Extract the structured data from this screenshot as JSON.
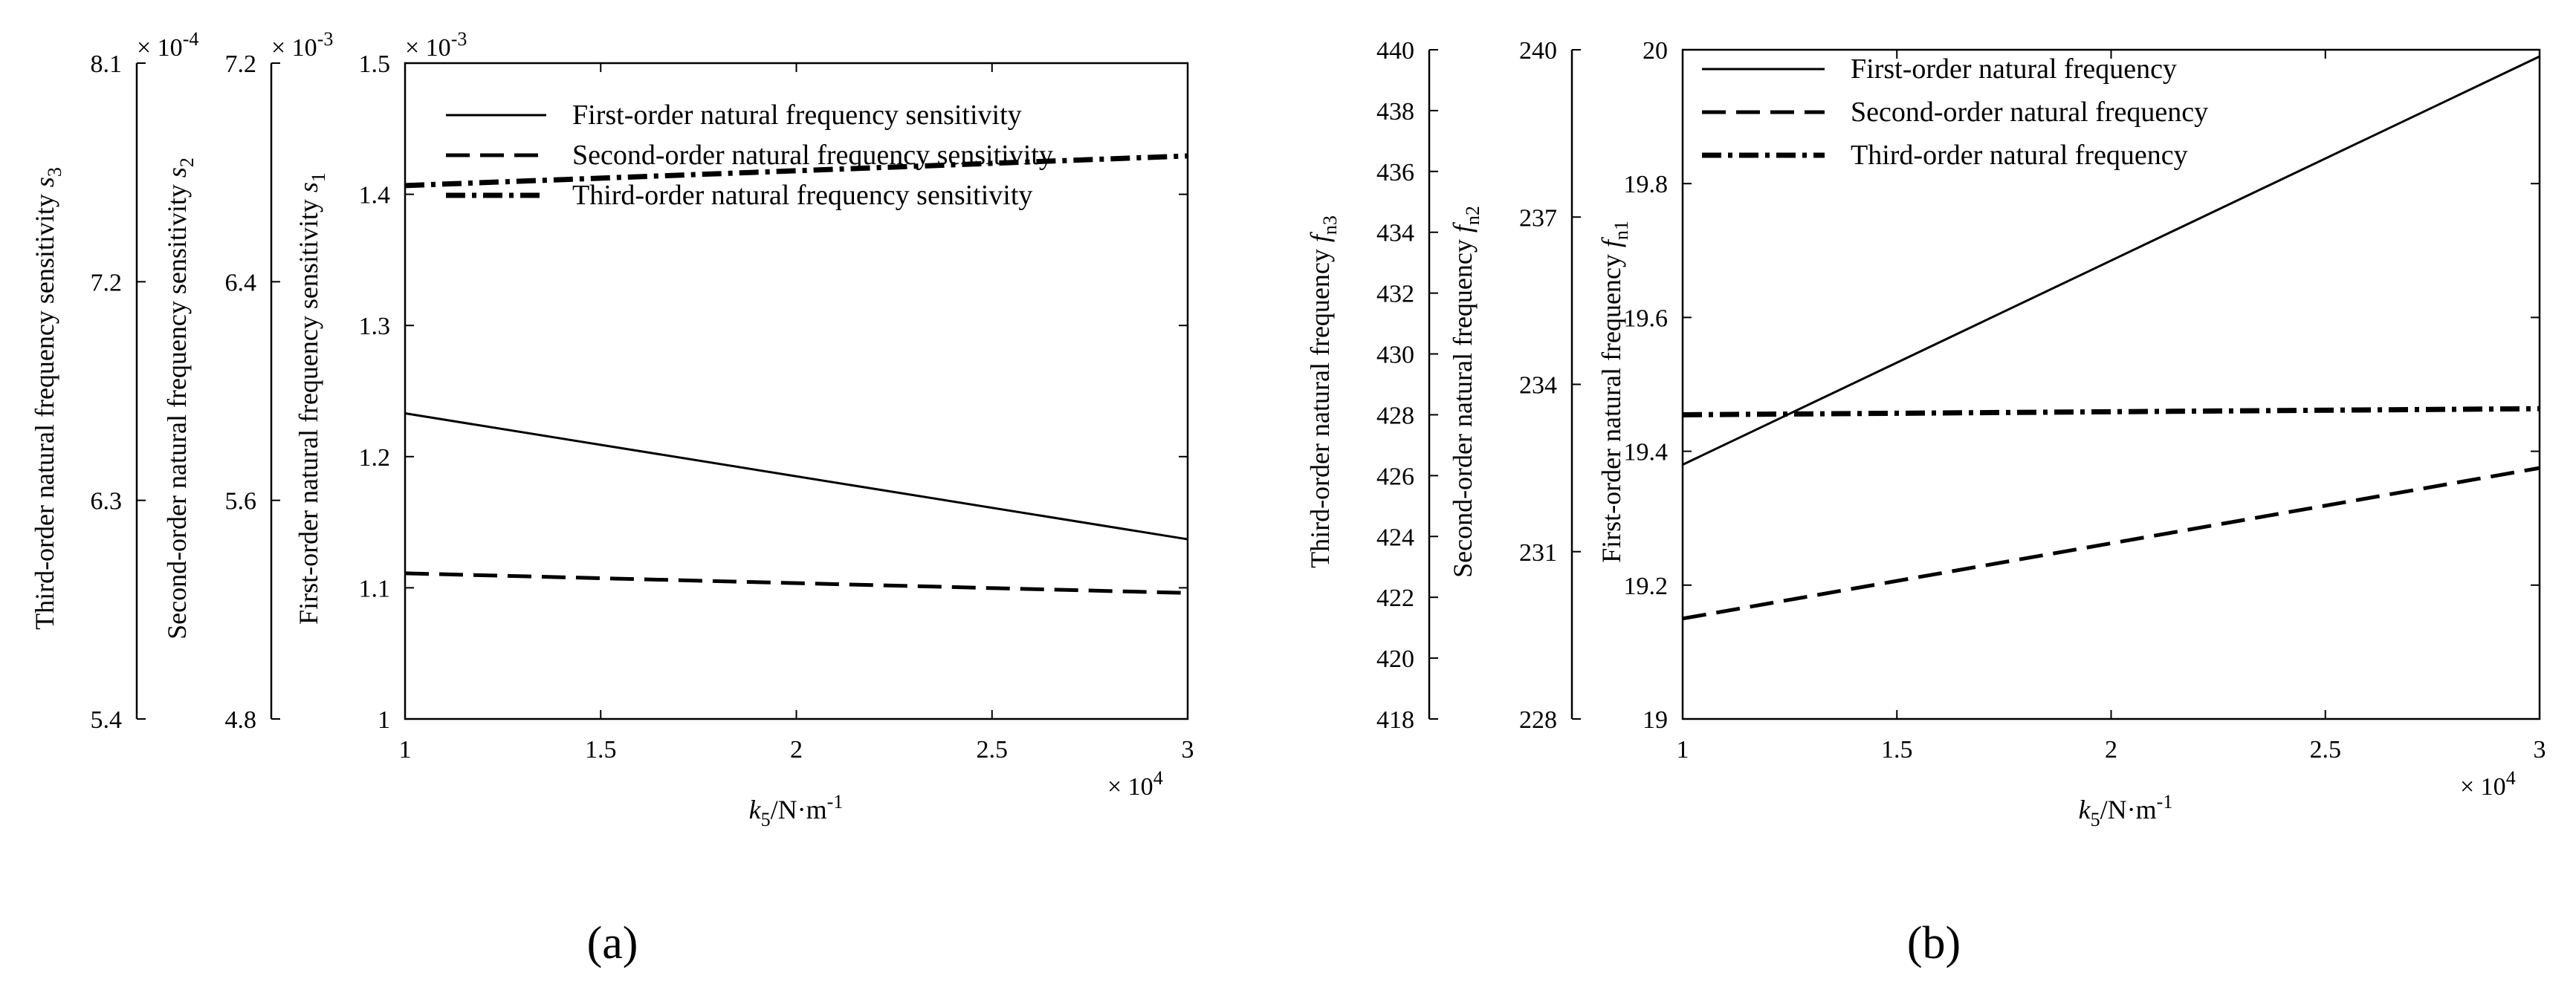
{
  "chart_data": [
    {
      "panel": "a",
      "panel_label": "(a)",
      "type": "line",
      "xlabel": "k5/N·m-1",
      "xlabel_main": "k",
      "xlabel_sub": "5",
      "xlabel_rest": "/N·m",
      "xlabel_sup": "-1",
      "x_exponent_mult": "× 10",
      "x_exponent": "4",
      "xlim": [
        1,
        3
      ],
      "xticks": [
        "1",
        "1.5",
        "2",
        "2.5",
        "3"
      ],
      "axes": [
        {
          "id": "s1",
          "label": "First-order natural frequency sensitivity s1",
          "label_main": "First-order natural frequency sensitivity ",
          "label_var": "s",
          "label_sub": "1",
          "ylim": [
            1.0,
            1.5
          ],
          "ticks": [
            "1",
            "1.1",
            "1.2",
            "1.3",
            "1.4",
            "1.5"
          ],
          "exponent_mult": "× 10",
          "exponent": "-3"
        },
        {
          "id": "s2",
          "label": "Second-order natural frequency sensitivity s2",
          "label_main": "Second-order natural frequency sensitivity ",
          "label_var": "s",
          "label_sub": "2",
          "ylim": [
            4.8,
            7.2
          ],
          "ticks": [
            "4.8",
            "5.6",
            "6.4",
            "7.2"
          ],
          "exponent_mult": "× 10",
          "exponent": "-3"
        },
        {
          "id": "s3",
          "label": "Third-order natural frequency sensitivity s3",
          "label_main": "Third-order natural frequency sensitivity ",
          "label_var": "s",
          "label_sub": "3",
          "ylim": [
            5.4,
            8.1
          ],
          "ticks": [
            "5.4",
            "6.3",
            "7.2",
            "8.1"
          ],
          "exponent_mult": "× 10",
          "exponent": "-4"
        }
      ],
      "legend_position": "top-center",
      "grid": false,
      "series": [
        {
          "name": "First-order natural frequency sensitivity",
          "style": "solid",
          "axis": "s1",
          "x": [
            1,
            3
          ],
          "y": [
            1.233,
            1.137
          ]
        },
        {
          "name": "Second-order natural frequency sensitivity",
          "style": "dashed",
          "axis": "s2",
          "x": [
            1,
            3
          ],
          "y": [
            5.333,
            5.261
          ]
        },
        {
          "name": "Third-order natural frequency sensitivity",
          "style": "dashdot",
          "axis": "s3",
          "x": [
            1,
            3
          ],
          "y": [
            7.596,
            7.718
          ]
        }
      ]
    },
    {
      "panel": "b",
      "panel_label": "(b)",
      "type": "line",
      "xlabel": "k5/N·m-1",
      "xlabel_main": "k",
      "xlabel_sub": "5",
      "xlabel_rest": "/N·m",
      "xlabel_sup": "-1",
      "x_exponent_mult": "× 10",
      "x_exponent": "4",
      "xlim": [
        1,
        3
      ],
      "xticks": [
        "1",
        "1.5",
        "2",
        "2.5",
        "3"
      ],
      "axes": [
        {
          "id": "fn1",
          "label": "First-order natural frequency fn1",
          "label_main": "First-order natural frequency ",
          "label_var": "f",
          "label_sub": "n1",
          "ylim": [
            19,
            20
          ],
          "ticks": [
            "19",
            "19.2",
            "19.4",
            "19.6",
            "19.8",
            "20"
          ]
        },
        {
          "id": "fn2",
          "label": "Second-order natural frequency fn2",
          "label_main": "Second-order natural frequency ",
          "label_var": "f",
          "label_sub": "n2",
          "ylim": [
            228,
            240
          ],
          "ticks": [
            "228",
            "231",
            "234",
            "237",
            "240"
          ]
        },
        {
          "id": "fn3",
          "label": "Third-order natural frequency fn3",
          "label_main": "Third-order natural frequency ",
          "label_var": "f",
          "label_sub": "n3",
          "ylim": [
            418,
            440
          ],
          "ticks": [
            "418",
            "420",
            "422",
            "424",
            "426",
            "428",
            "430",
            "432",
            "434",
            "436",
            "438",
            "440"
          ]
        }
      ],
      "legend_position": "top-left",
      "grid": false,
      "series": [
        {
          "name": "First-order natural frequency",
          "style": "solid",
          "axis": "fn1",
          "x": [
            1,
            3
          ],
          "y": [
            19.38,
            19.99
          ]
        },
        {
          "name": "Second-order natural frequency",
          "style": "dashed",
          "axis": "fn2",
          "x": [
            1,
            3
          ],
          "y": [
            229.8,
            232.5
          ]
        },
        {
          "name": "Third-order natural frequency",
          "style": "dashdot",
          "axis": "fn3",
          "x": [
            1,
            3
          ],
          "y": [
            428.0,
            428.2
          ]
        }
      ]
    }
  ]
}
